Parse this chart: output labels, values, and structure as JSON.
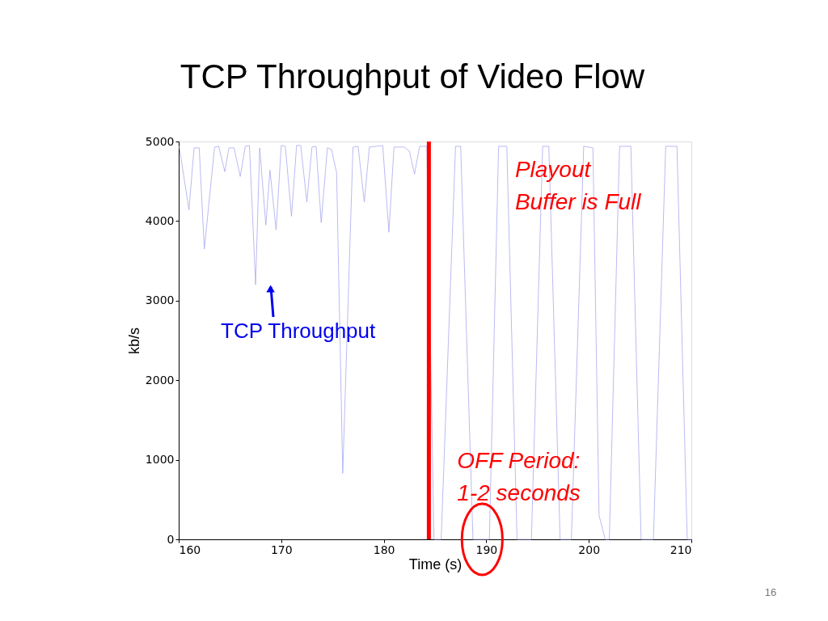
{
  "chart_data": {
    "type": "line",
    "title": "TCP Throughput of Video Flow",
    "xlabel": "Time (s)",
    "ylabel": "kb/s",
    "x": [
      160.05,
      161.0,
      161.5,
      162.0,
      162.5,
      163.5,
      163.9,
      164.5,
      164.9,
      165.4,
      166.0,
      166.5,
      166.9,
      167.5,
      167.9,
      168.5,
      168.9,
      169.5,
      170.0,
      170.4,
      171.0,
      171.5,
      171.9,
      172.5,
      173.0,
      173.4,
      173.9,
      174.5,
      174.9,
      175.4,
      176.0,
      177.0,
      177.5,
      178.1,
      178.6,
      179.9,
      180.5,
      181.0,
      182.0,
      182.5,
      183.0,
      183.5,
      184.2,
      184.9,
      185.6,
      187.0,
      187.5,
      188.7,
      190.3,
      191.2,
      192.0,
      193.0,
      194.4,
      195.5,
      196.1,
      197.2,
      198.3,
      199.5,
      200.4,
      201.0,
      201.6,
      202.0,
      203.0,
      204.1,
      205.1,
      206.3,
      207.5,
      208.6,
      209.6,
      210.0
    ],
    "values": [
      4940,
      4140,
      4920,
      4920,
      3650,
      4930,
      4940,
      4620,
      4920,
      4920,
      4560,
      4940,
      4950,
      3200,
      4920,
      3950,
      4640,
      3890,
      4950,
      4940,
      4060,
      4950,
      4950,
      4240,
      4930,
      4940,
      3980,
      4920,
      4900,
      4610,
      830,
      4930,
      4940,
      4240,
      4930,
      4950,
      3860,
      4930,
      4930,
      4880,
      4590,
      4940,
      4940,
      0,
      0,
      4940,
      4940,
      0,
      0,
      4940,
      4940,
      0,
      0,
      4940,
      4940,
      0,
      0,
      4940,
      4920,
      300,
      0,
      0,
      4940,
      4940,
      0,
      0,
      4940,
      4940,
      0,
      0
    ],
    "color": "#a8a8f0",
    "xlim": [
      160,
      210
    ],
    "ylim": [
      0,
      5000
    ],
    "xticks": [
      160,
      170,
      180,
      190,
      200,
      210
    ],
    "yticks": [
      0,
      1000,
      2000,
      3000,
      4000,
      5000
    ],
    "grid": false,
    "marker": "none",
    "line_style": "solid",
    "ref_lines": [
      {
        "axis": "x",
        "value": 184.4,
        "label": "Playout\nBuffer is Full",
        "color": "#ff0000"
      }
    ],
    "annotations": [
      "TCP Throughput",
      {
        "text": "OFF Period:\n1-2 seconds",
        "x": 189.6,
        "y": 0
      },
      "16"
    ]
  }
}
